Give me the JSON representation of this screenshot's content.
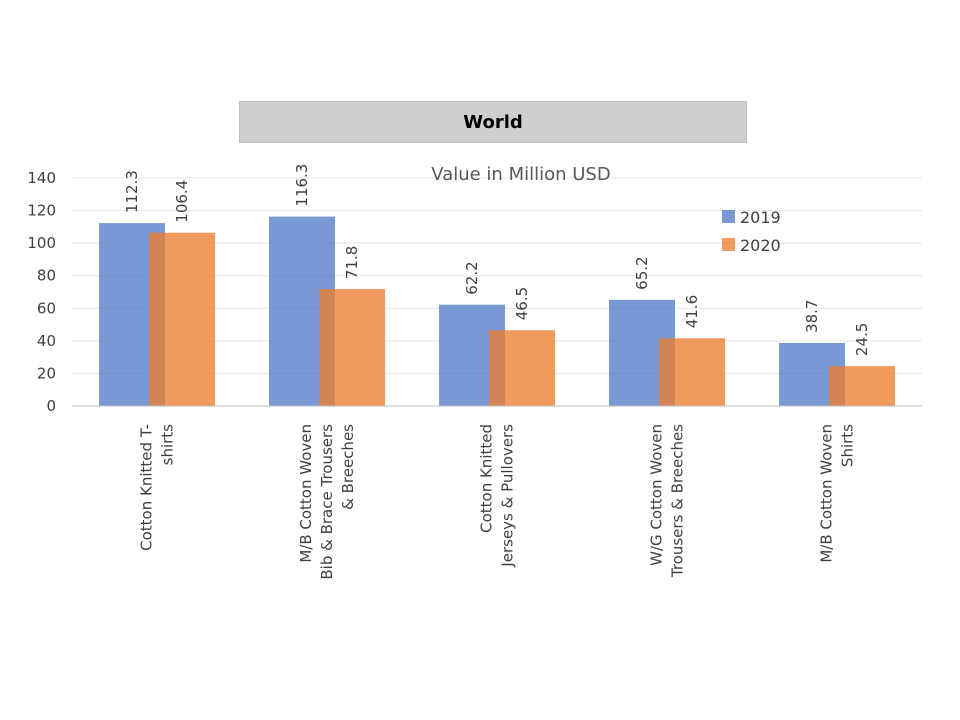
{
  "banner": {
    "title": "World"
  },
  "chart_data": {
    "type": "bar",
    "subtitle": "Value in Million USD",
    "categories": [
      [
        "Cotton Knitted  T-",
        "shirts"
      ],
      [
        "M/B Cotton Woven",
        "Bib & Brace Trousers",
        "& Breeches"
      ],
      [
        "Cotton Knitted",
        "Jerseys & Pullovers"
      ],
      [
        "W/G Cotton Woven",
        "Trousers  & Breeches"
      ],
      [
        "M/B Cotton Woven",
        "Shirts"
      ]
    ],
    "series": [
      {
        "name": "2019",
        "color": "#4472c4",
        "values": [
          112.3,
          116.3,
          62.2,
          65.2,
          38.7
        ]
      },
      {
        "name": "2020",
        "color": "#ed7d31",
        "values": [
          106.4,
          71.8,
          46.5,
          41.6,
          24.5
        ]
      }
    ],
    "ylim": [
      0,
      140
    ],
    "yticks": [
      0,
      20,
      40,
      60,
      80,
      100,
      120,
      140
    ],
    "grid": true,
    "legend": "right"
  }
}
